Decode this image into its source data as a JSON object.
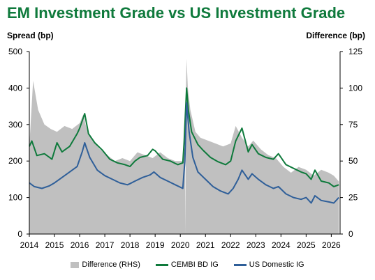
{
  "chart_data": {
    "type": "line",
    "title": "EM Investment Grade vs US Investment Grade",
    "ylabel_left": "Spread (bp)",
    "ylabel_right": "Difference (bp)",
    "xlim": [
      2014.0,
      2026.35
    ],
    "ylim_left": [
      0,
      500
    ],
    "ylim_right": [
      0,
      125
    ],
    "y_ticks_left": [
      "0",
      "100",
      "200",
      "300",
      "400",
      "500"
    ],
    "y_ticks_right": [
      "0",
      "25",
      "50",
      "75",
      "100",
      "125"
    ],
    "x_ticks": [
      "2014",
      "2015",
      "2016",
      "2017",
      "2018",
      "2019",
      "2020",
      "2021",
      "2022",
      "2023",
      "2024",
      "2025",
      "2026"
    ],
    "grid": false,
    "legend_position": "bottom",
    "series": [
      {
        "name": "Difference (RHS)",
        "kind": "area",
        "axis": "right",
        "color": "#c0c0c0",
        "x": [
          2014.0,
          2014.15,
          2014.35,
          2014.6,
          2014.85,
          2015.1,
          2015.4,
          2015.7,
          2016.0,
          2016.15,
          2016.3,
          2016.5,
          2016.8,
          2017.1,
          2017.4,
          2017.7,
          2018.0,
          2018.3,
          2018.6,
          2018.9,
          2019.2,
          2019.5,
          2019.8,
          2020.1,
          2020.18,
          2020.2,
          2020.22,
          2020.25,
          2020.3,
          2020.4,
          2020.6,
          2020.8,
          2021.1,
          2021.4,
          2021.7,
          2022.0,
          2022.2,
          2022.45,
          2022.7,
          2022.9,
          2023.2,
          2023.5,
          2023.8,
          2024.1,
          2024.4,
          2024.7,
          2025.0,
          2025.3,
          2025.6,
          2025.9,
          2026.1,
          2026.3
        ],
        "values": [
          60,
          105,
          85,
          75,
          72,
          70,
          74,
          72,
          76,
          82,
          70,
          64,
          58,
          54,
          50,
          52,
          50,
          56,
          54,
          52,
          56,
          52,
          50,
          50,
          60,
          0,
          98,
          120,
          100,
          85,
          70,
          66,
          64,
          62,
          60,
          62,
          74,
          66,
          60,
          64,
          58,
          54,
          52,
          46,
          42,
          46,
          44,
          40,
          44,
          42,
          40,
          36
        ]
      },
      {
        "name": "CEMBI BD IG",
        "kind": "line",
        "axis": "left",
        "color": "#0f7a3c",
        "x": [
          2014.0,
          2014.1,
          2014.3,
          2014.6,
          2014.9,
          2015.1,
          2015.3,
          2015.6,
          2015.9,
          2016.0,
          2016.1,
          2016.2,
          2016.35,
          2016.6,
          2016.9,
          2017.2,
          2017.5,
          2017.8,
          2018.0,
          2018.2,
          2018.4,
          2018.7,
          2018.9,
          2019.0,
          2019.3,
          2019.6,
          2019.9,
          2020.1,
          2020.15,
          2020.25,
          2020.32,
          2020.45,
          2020.7,
          2020.9,
          2021.2,
          2021.5,
          2021.8,
          2022.0,
          2022.2,
          2022.45,
          2022.7,
          2022.85,
          2023.1,
          2023.4,
          2023.7,
          2023.9,
          2024.2,
          2024.5,
          2024.8,
          2025.0,
          2025.2,
          2025.35,
          2025.6,
          2025.9,
          2026.1,
          2026.3
        ],
        "values": [
          240,
          255,
          215,
          220,
          205,
          250,
          225,
          240,
          275,
          290,
          310,
          330,
          275,
          250,
          230,
          205,
          195,
          190,
          185,
          200,
          210,
          215,
          232,
          228,
          205,
          200,
          190,
          195,
          250,
          400,
          340,
          280,
          245,
          230,
          210,
          198,
          190,
          200,
          255,
          290,
          225,
          245,
          220,
          210,
          205,
          220,
          190,
          180,
          170,
          165,
          150,
          175,
          145,
          140,
          130,
          135
        ]
      },
      {
        "name": "US Domestic IG",
        "kind": "line",
        "axis": "left",
        "color": "#2f5f99",
        "x": [
          2014.0,
          2014.2,
          2014.5,
          2014.8,
          2015.0,
          2015.3,
          2015.6,
          2015.9,
          2016.0,
          2016.1,
          2016.2,
          2016.4,
          2016.7,
          2017.0,
          2017.3,
          2017.6,
          2017.9,
          2018.0,
          2018.2,
          2018.5,
          2018.8,
          2018.95,
          2019.2,
          2019.5,
          2019.8,
          2020.1,
          2020.18,
          2020.25,
          2020.35,
          2020.5,
          2020.7,
          2021.0,
          2021.3,
          2021.6,
          2021.9,
          2022.1,
          2022.3,
          2022.45,
          2022.7,
          2022.85,
          2023.1,
          2023.4,
          2023.7,
          2023.9,
          2024.2,
          2024.5,
          2024.8,
          2025.0,
          2025.2,
          2025.35,
          2025.6,
          2025.9,
          2026.1,
          2026.3
        ],
        "values": [
          140,
          130,
          125,
          132,
          140,
          155,
          170,
          185,
          205,
          225,
          250,
          210,
          175,
          160,
          150,
          140,
          135,
          138,
          145,
          155,
          162,
          170,
          155,
          145,
          135,
          125,
          200,
          360,
          280,
          210,
          170,
          150,
          130,
          118,
          110,
          125,
          150,
          175,
          150,
          165,
          150,
          135,
          125,
          130,
          110,
          100,
          95,
          100,
          85,
          105,
          92,
          88,
          85,
          100
        ]
      }
    ]
  }
}
